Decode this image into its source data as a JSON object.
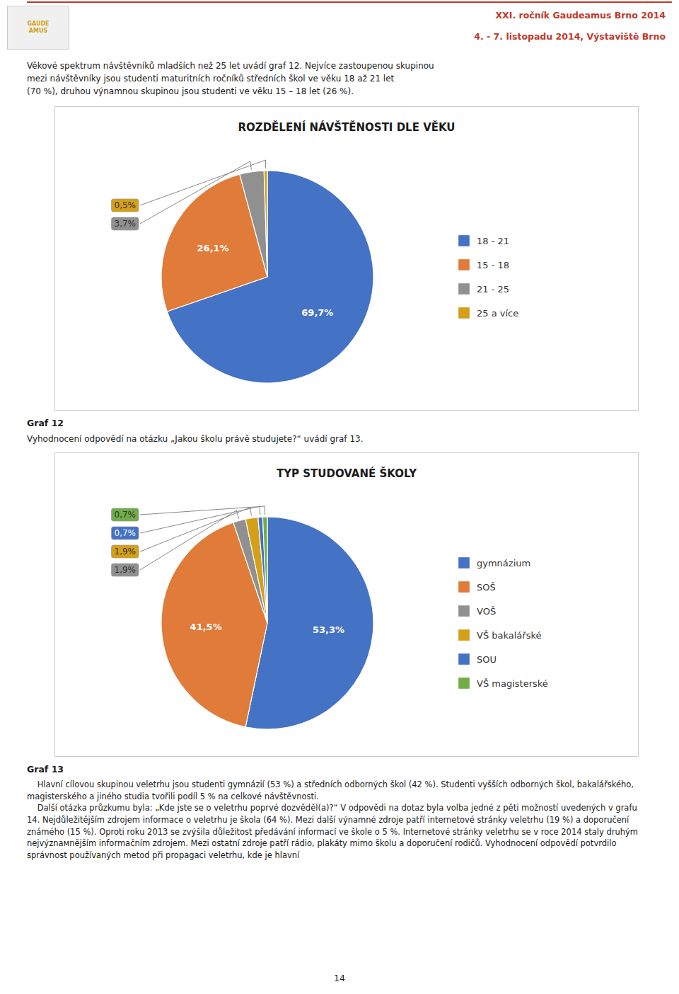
{
  "chart_data": [
    {
      "type": "pie",
      "title": "ROZDĚLENÍ NÁVŠTĚNOSTI DLE VĚKU",
      "categories": [
        "18 - 21",
        "15 - 18",
        "21 - 25",
        "25 a více"
      ],
      "values": [
        69.7,
        26.1,
        3.7,
        0.5
      ],
      "value_labels": [
        "69,7%",
        "26,1%",
        "3,7%",
        "0,5%"
      ],
      "colors": [
        "#4472c4",
        "#e07b39",
        "#909090",
        "#d4a017"
      ],
      "data_labels": true,
      "legend": "right"
    },
    {
      "type": "pie",
      "title": "TYP STUDOVANÉ ŠKOLY",
      "categories": [
        "gymnázium",
        "SOŠ",
        "VOŠ",
        "VŠ bakalářské",
        "SOU",
        "VŠ magisterské"
      ],
      "values": [
        53.3,
        41.5,
        1.9,
        1.9,
        0.7,
        0.7
      ],
      "value_labels": [
        "53,3%",
        "41,5%",
        "1,9%",
        "1,9%",
        "0,7%",
        "0,7%"
      ],
      "colors": [
        "#4472c4",
        "#e07b39",
        "#909090",
        "#d4a017",
        "#4472c4",
        "#70ad47"
      ],
      "data_labels": true,
      "legend": "right"
    }
  ],
  "page": {
    "logo_text": "GAUDE\nAMUS",
    "header_title_line1": "XXI. ročník Gaudeamus Brno 2014",
    "header_title_line2": "4. - 7. listopadu 2014, Výstaviště Brno",
    "intro": "Věkové spektrum návštěvníků mladších než 25 let uvádí graf 12. Nejvíce zastoupenou skupinou\nmezi návštěvníky jsou studenti maturitních ročníků středních škol ve věku 18 až 21 let\n(70 %), druhou výnamnou skupinou jsou studenti ve věku 15 – 18 let (26 %).",
    "graf12_text": "Graf 12",
    "graf12_subtext": "Vyhodnocení odpovědí na otázku „Jakou školu právě studujete?“ uvádí graf 13.",
    "graf13_text": "Graf 13",
    "body": "    Hlavní cílovou skupinou veletrhu jsou studenti gymnázií (53 %) a středních odborných škol (42 %). Studenti vyšších odborných škol, bakalářského, magisterského a jiného studia tvořili podíl 5 % na celkové návštěvnosti.\n    Další otázka průzkumu byla: „Kde jste se o veletrhu poprvé dozvěděl(a)?“ V odpovědi na dotaz byla volba jedné z pěti možností uvedených v grafu 14. Nejdůležitějším zdrojem informace o veletrhu je škola (64 %). Mezi další výnamné zdroje patří internetové stránky veletrhu (19 %) a doporučení známého (15 %). Oproti roku 2013 se zvýšila důležitost předávání informací ve škole o 5 %. Internetové stránky veletrhu se v roce 2014 staly druhým nejvýznамnějším informačním zdrojem. Mezi ostatní zdroje patří rádio, plakáty mimo školu a doporučení rodičů. Vyhodnocení odpovědí potvrdilo správnost používaných metod při propagaci veletrhu, kde je hlavní",
    "page_number": "14"
  }
}
